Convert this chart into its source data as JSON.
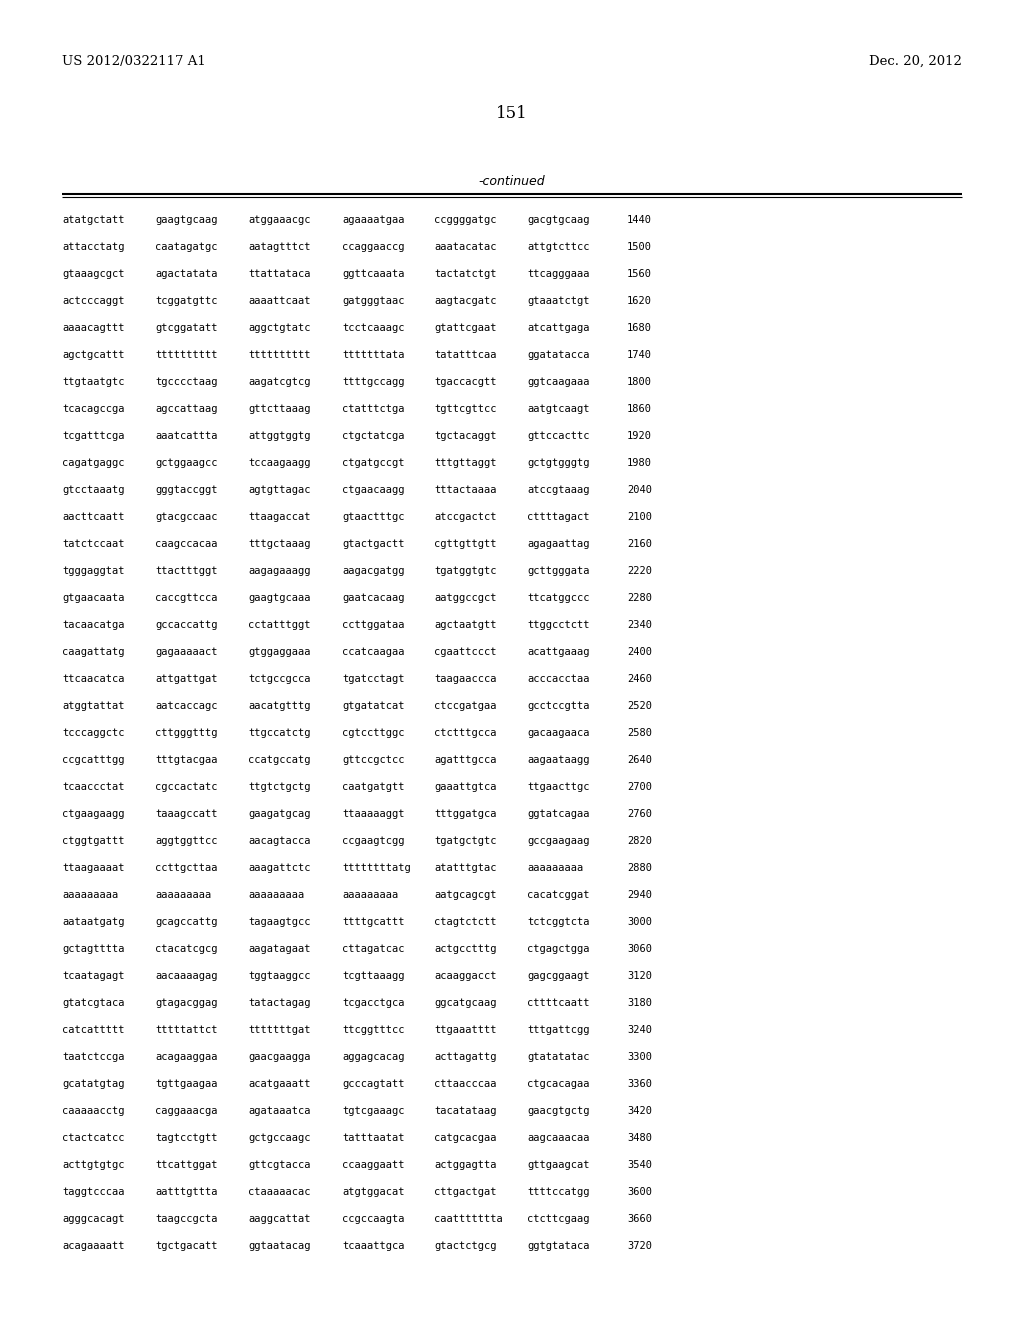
{
  "background_color": "#ffffff",
  "header_left": "US 2012/0322117 A1",
  "header_right": "Dec. 20, 2012",
  "page_number": "151",
  "continued_label": "-continued",
  "sequence_lines": [
    [
      "atatgctatt",
      "gaagtgcaag",
      "atggaaacgc",
      "agaaaatgaa",
      "ccggggatgc",
      "gacgtgcaag",
      "1440"
    ],
    [
      "attacctatg",
      "caatagatgc",
      "aatagtttct",
      "ccaggaaccg",
      "aaatacatac",
      "attgtcttcc",
      "1500"
    ],
    [
      "gtaaagcgct",
      "agactatata",
      "ttattataca",
      "ggttcaaata",
      "tactatctgt",
      "ttcagggaaa",
      "1560"
    ],
    [
      "actcccaggt",
      "tcggatgttc",
      "aaaattcaat",
      "gatgggtaac",
      "aagtacgatc",
      "gtaaatctgt",
      "1620"
    ],
    [
      "aaaacagttt",
      "gtcggatatt",
      "aggctgtatc",
      "tcctcaaagc",
      "gtattcgaat",
      "atcattgaga",
      "1680"
    ],
    [
      "agctgcattt",
      "tttttttttt",
      "tttttttttt",
      "tttttttata",
      "tatatttcaa",
      "ggatatacca",
      "1740"
    ],
    [
      "ttgtaatgtc",
      "tgcccctaag",
      "aagatcgtcg",
      "ttttgccagg",
      "tgaccacgtt",
      "ggtcaagaaa",
      "1800"
    ],
    [
      "tcacagccga",
      "agccattaag",
      "gttcttaaag",
      "ctatttctga",
      "tgttcgttcc",
      "aatgtcaagt",
      "1860"
    ],
    [
      "tcgatttcga",
      "aaatcattta",
      "attggtggtg",
      "ctgctatcga",
      "tgctacaggt",
      "gttccacttc",
      "1920"
    ],
    [
      "cagatgaggc",
      "gctggaagcc",
      "tccaagaagg",
      "ctgatgccgt",
      "tttgttaggt",
      "gctgtgggtg",
      "1980"
    ],
    [
      "gtcctaaatg",
      "gggtaccggt",
      "agtgttagac",
      "ctgaacaagg",
      "tttactaaaa",
      "atccgtaaag",
      "2040"
    ],
    [
      "aacttcaatt",
      "gtacgccaac",
      "ttaagaccat",
      "gtaactttgc",
      "atccgactct",
      "cttttagact",
      "2100"
    ],
    [
      "tatctccaat",
      "caagccacaa",
      "tttgctaaag",
      "gtactgactt",
      "cgttgttgtt",
      "agagaattag",
      "2160"
    ],
    [
      "tgggaggtat",
      "ttactttggt",
      "aagagaaagg",
      "aagacgatgg",
      "tgatggtgtc",
      "gcttgggata",
      "2220"
    ],
    [
      "gtgaacaata",
      "caccgttcca",
      "gaagtgcaaa",
      "gaatcacaag",
      "aatggccgct",
      "ttcatggccc",
      "2280"
    ],
    [
      "tacaacatga",
      "gccaccattg",
      "cctatttggt",
      "ccttggataa",
      "agctaatgtt",
      "ttggcctctt",
      "2340"
    ],
    [
      "caagattatg",
      "gagaaaaact",
      "gtggaggaaa",
      "ccatcaagaa",
      "cgaattccct",
      "acattgaaag",
      "2400"
    ],
    [
      "ttcaacatca",
      "attgattgat",
      "tctgccgcca",
      "tgatcctagt",
      "taagaaccca",
      "acccacctaa",
      "2460"
    ],
    [
      "atggtattat",
      "aatcaccagc",
      "aacatgtttg",
      "gtgatatcat",
      "ctccgatgaa",
      "gcctccgtta",
      "2520"
    ],
    [
      "tcccaggctc",
      "cttgggtttg",
      "ttgccatctg",
      "cgtccttggc",
      "ctctttgcca",
      "gacaagaaca",
      "2580"
    ],
    [
      "ccgcatttgg",
      "tttgtacgaa",
      "ccatgccatg",
      "gttccgctcc",
      "agatttgcca",
      "aagaataagg",
      "2640"
    ],
    [
      "tcaaccctat",
      "cgccactatc",
      "ttgtctgctg",
      "caatgatgtt",
      "gaaattgtca",
      "ttgaacttgc",
      "2700"
    ],
    [
      "ctgaagaagg",
      "taaagccatt",
      "gaagatgcag",
      "ttaaaaaggt",
      "tttggatgca",
      "ggtatcagaa",
      "2760"
    ],
    [
      "ctggtgattt",
      "aggtggttcc",
      "aacagtacca",
      "ccgaagtcgg",
      "tgatgctgtc",
      "gccgaagaag",
      "2820"
    ],
    [
      "ttaagaaaat",
      "ccttgcttaa",
      "aaagattctc",
      "ttttttttatg",
      "atatttgtac",
      "aaaaaaaaa",
      "2880"
    ],
    [
      "aaaaaaaaa",
      "aaaaaaaaa",
      "aaaaaaaaa",
      "aaaaaaaaa",
      "aatgcagcgt",
      "cacatcggat",
      "2940"
    ],
    [
      "aataatgatg",
      "gcagccattg",
      "tagaagtgcc",
      "ttttgcattt",
      "ctagtctctt",
      "tctcggtcta",
      "3000"
    ],
    [
      "gctagtttta",
      "ctacatcgcg",
      "aagatagaat",
      "cttagatcac",
      "actgcctttg",
      "ctgagctgga",
      "3060"
    ],
    [
      "tcaatagagt",
      "aacaaaagag",
      "tggtaaggcc",
      "tcgttaaagg",
      "acaaggacct",
      "gagcggaagt",
      "3120"
    ],
    [
      "gtatcgtaca",
      "gtagacggag",
      "tatactagag",
      "tcgacctgca",
      "ggcatgcaag",
      "cttttcaatt",
      "3180"
    ],
    [
      "catcattttt",
      "tttttattct",
      "tttttttgat",
      "ttcggtttcc",
      "ttgaaatttt",
      "tttgattcgg",
      "3240"
    ],
    [
      "taatctccga",
      "acagaaggaa",
      "gaacgaagga",
      "aggagcacag",
      "acttagattg",
      "gtatatatac",
      "3300"
    ],
    [
      "gcatatgtag",
      "tgttgaagaa",
      "acatgaaatt",
      "gcccagtatt",
      "cttaacccaa",
      "ctgcacagaa",
      "3360"
    ],
    [
      "caaaaacctg",
      "caggaaacga",
      "agataaatca",
      "tgtcgaaagc",
      "tacatataag",
      "gaacgtgctg",
      "3420"
    ],
    [
      "ctactcatcc",
      "tagtcctgtt",
      "gctgccaagc",
      "tatttaatat",
      "catgcacgaa",
      "aagcaaacaa",
      "3480"
    ],
    [
      "acttgtgtgc",
      "ttcattggat",
      "gttcgtacca",
      "ccaaggaatt",
      "actggagtta",
      "gttgaagcat",
      "3540"
    ],
    [
      "taggtcccaa",
      "aatttgttta",
      "ctaaaaacac",
      "atgtggacat",
      "cttgactgat",
      "ttttccatgg",
      "3600"
    ],
    [
      "agggcacagt",
      "taagccgcta",
      "aaggcattat",
      "ccgccaagta",
      "caattttttta",
      "ctcttcgaag",
      "3660"
    ],
    [
      "acagaaaatt",
      "tgctgacatt",
      "ggtaatacag",
      "tcaaattgca",
      "gtactctgcg",
      "ggtgtataca",
      "3720"
    ]
  ]
}
